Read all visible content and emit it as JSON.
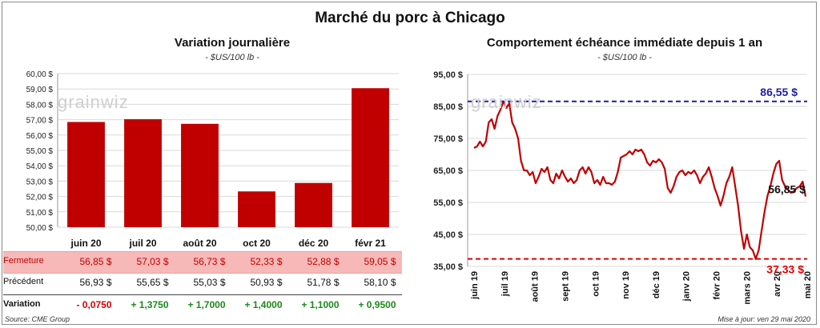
{
  "title": "Marché du porc à Chicago",
  "left_chart": {
    "title": "Variation  journalière",
    "unit": "- $US/100 lb -"
  },
  "right_chart": {
    "title": "Comportement  échéance immédiate depuis 1 an",
    "unit": "- $US/100 lb -",
    "high_label": "86,55 $",
    "low_label": "37,33 $",
    "last_label": "56,85 $"
  },
  "watermark": "grainwiz",
  "table": {
    "fermeture_label": "Fermeture",
    "precedent_label": "Précédent",
    "variation_label": "Variation",
    "fermeture": [
      "56,85  $",
      "57,03  $",
      "56,73  $",
      "52,33  $",
      "52,88  $",
      "59,05  $"
    ],
    "precedent": [
      "56,93  $",
      "55,65  $",
      "55,03  $",
      "50,93  $",
      "51,78  $",
      "58,10  $"
    ],
    "variation": [
      "- 0,0750",
      "+ 1,3750",
      "+ 1,7000",
      "+ 1,4000",
      "+ 1,1000",
      "+ 0,9500"
    ],
    "variation_sign": [
      "neg",
      "pos",
      "pos",
      "pos",
      "pos",
      "pos"
    ]
  },
  "source": "Source: CME Group",
  "updated": "Mise à jour: ven 29 mai 2020",
  "colors": {
    "bar": "#c00000",
    "line": "#c00000",
    "high_line": "#1f1fa0",
    "low_line": "#e00000",
    "grid": "#d9d9d9"
  },
  "chart_data": [
    {
      "type": "bar",
      "categories": [
        "juin 20",
        "juil 20",
        "août 20",
        "oct 20",
        "déc 20",
        "févr 21"
      ],
      "values": [
        56.85,
        57.03,
        56.73,
        52.33,
        52.88,
        59.05
      ],
      "ylim": [
        50,
        60
      ],
      "yticks": [
        "50,00 $",
        "51,00 $",
        "52,00 $",
        "53,00 $",
        "54,00 $",
        "55,00 $",
        "56,00 $",
        "57,00 $",
        "58,00 $",
        "59,00 $",
        "60,00 $"
      ],
      "grid": true
    },
    {
      "type": "line",
      "x_labels": [
        "juin 19",
        "juil 19",
        "août 19",
        "sept 19",
        "oct 19",
        "nov 19",
        "déc 19",
        "janv 20",
        "févr 20",
        "mars 20",
        "avr 20",
        "mai 20"
      ],
      "values": [
        72,
        72.5,
        74,
        72.5,
        74,
        80,
        81,
        78,
        82,
        84,
        86.55,
        84.5,
        86,
        80,
        78,
        75,
        68,
        65,
        65,
        63.5,
        64.5,
        61,
        63,
        65.5,
        64.5,
        66,
        62,
        61,
        64,
        62.5,
        65,
        63,
        61.5,
        62.5,
        61,
        62,
        65,
        66,
        64,
        66,
        64.5,
        61,
        62,
        60.5,
        63,
        61,
        61,
        60.5,
        61.5,
        64.5,
        69,
        69.5,
        70,
        71,
        70,
        71.5,
        71,
        71.5,
        70,
        67.5,
        66.5,
        68,
        67.5,
        68.5,
        67.5,
        65.5,
        59.5,
        58,
        60,
        63,
        64.5,
        65,
        63.5,
        64.5,
        64,
        65,
        63.5,
        61,
        63,
        64,
        66,
        63,
        59.5,
        57,
        54,
        57,
        61,
        63,
        66,
        60,
        54,
        46,
        40.5,
        45,
        41,
        40,
        37.33,
        40,
        46,
        52,
        57,
        60,
        64,
        67,
        68,
        62,
        60,
        59,
        58,
        58.5,
        59.5,
        60,
        61.5,
        56.85
      ],
      "high": 86.55,
      "low": 37.33,
      "last": 56.85,
      "ylim": [
        35,
        95
      ],
      "yticks": [
        "35,00 $",
        "45,00 $",
        "55,00 $",
        "65,00 $",
        "75,00 $",
        "85,00 $",
        "95,00 $"
      ],
      "grid": true
    }
  ]
}
